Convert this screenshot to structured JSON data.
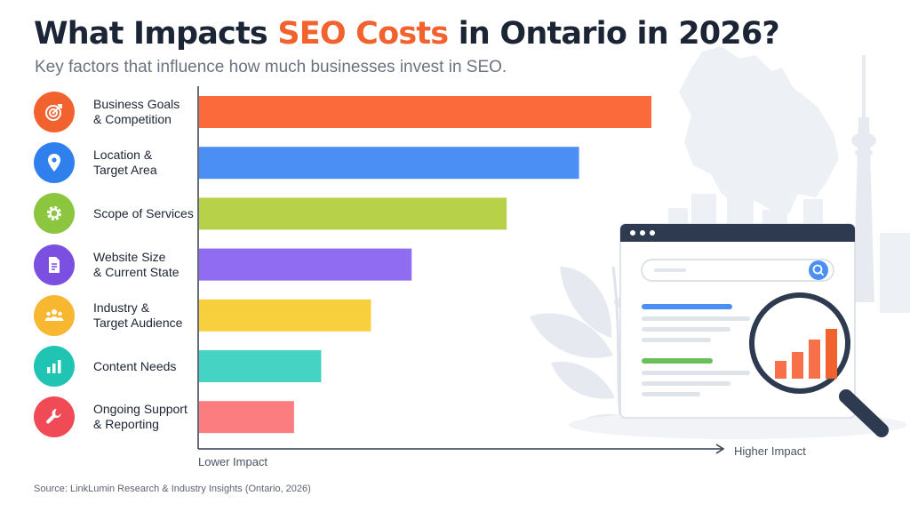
{
  "title": {
    "part1": "What Impacts ",
    "highlight": "SEO Costs",
    "part2": " in Ontario in 2026?"
  },
  "subtitle": "Key factors that influence how much businesses invest in SEO.",
  "source": "Source: LinkLumin Research & Industry Insights (Ontario, 2026)",
  "colors": {
    "title_text": "#1b2536",
    "highlight": "#f2622e",
    "subtitle": "#6b7380"
  },
  "chart_data": {
    "type": "bar",
    "orientation": "horizontal",
    "categories": [
      "Business Goals\n& Competition",
      "Location &\nTarget Area",
      "Scope of Services",
      "Website Size\n& Current State",
      "Industry &\nTarget Audience",
      "Content Needs",
      "Ongoing Support\n& Reporting"
    ],
    "values": [
      100,
      84,
      68,
      47,
      38,
      27,
      21
    ],
    "colors": [
      "#fb6a3a",
      "#4b8ff5",
      "#b7d148",
      "#8f6cf2",
      "#f8cf3c",
      "#45d3c4",
      "#fb7d7f"
    ],
    "icons": [
      "target-icon",
      "location-pin-icon",
      "gear-icon",
      "document-icon",
      "people-icon",
      "bar-chart-icon",
      "wrench-icon"
    ],
    "icon_colors": [
      "#f2622e",
      "#2f80ed",
      "#8cc63f",
      "#7b4fe0",
      "#f7b731",
      "#20c4b3",
      "#ef4a56"
    ],
    "xlabel_low": "Lower Impact",
    "xlabel_high": "Higher Impact",
    "ylabel": "",
    "xlim": [
      0,
      100
    ],
    "grid": false,
    "legend": "none"
  }
}
